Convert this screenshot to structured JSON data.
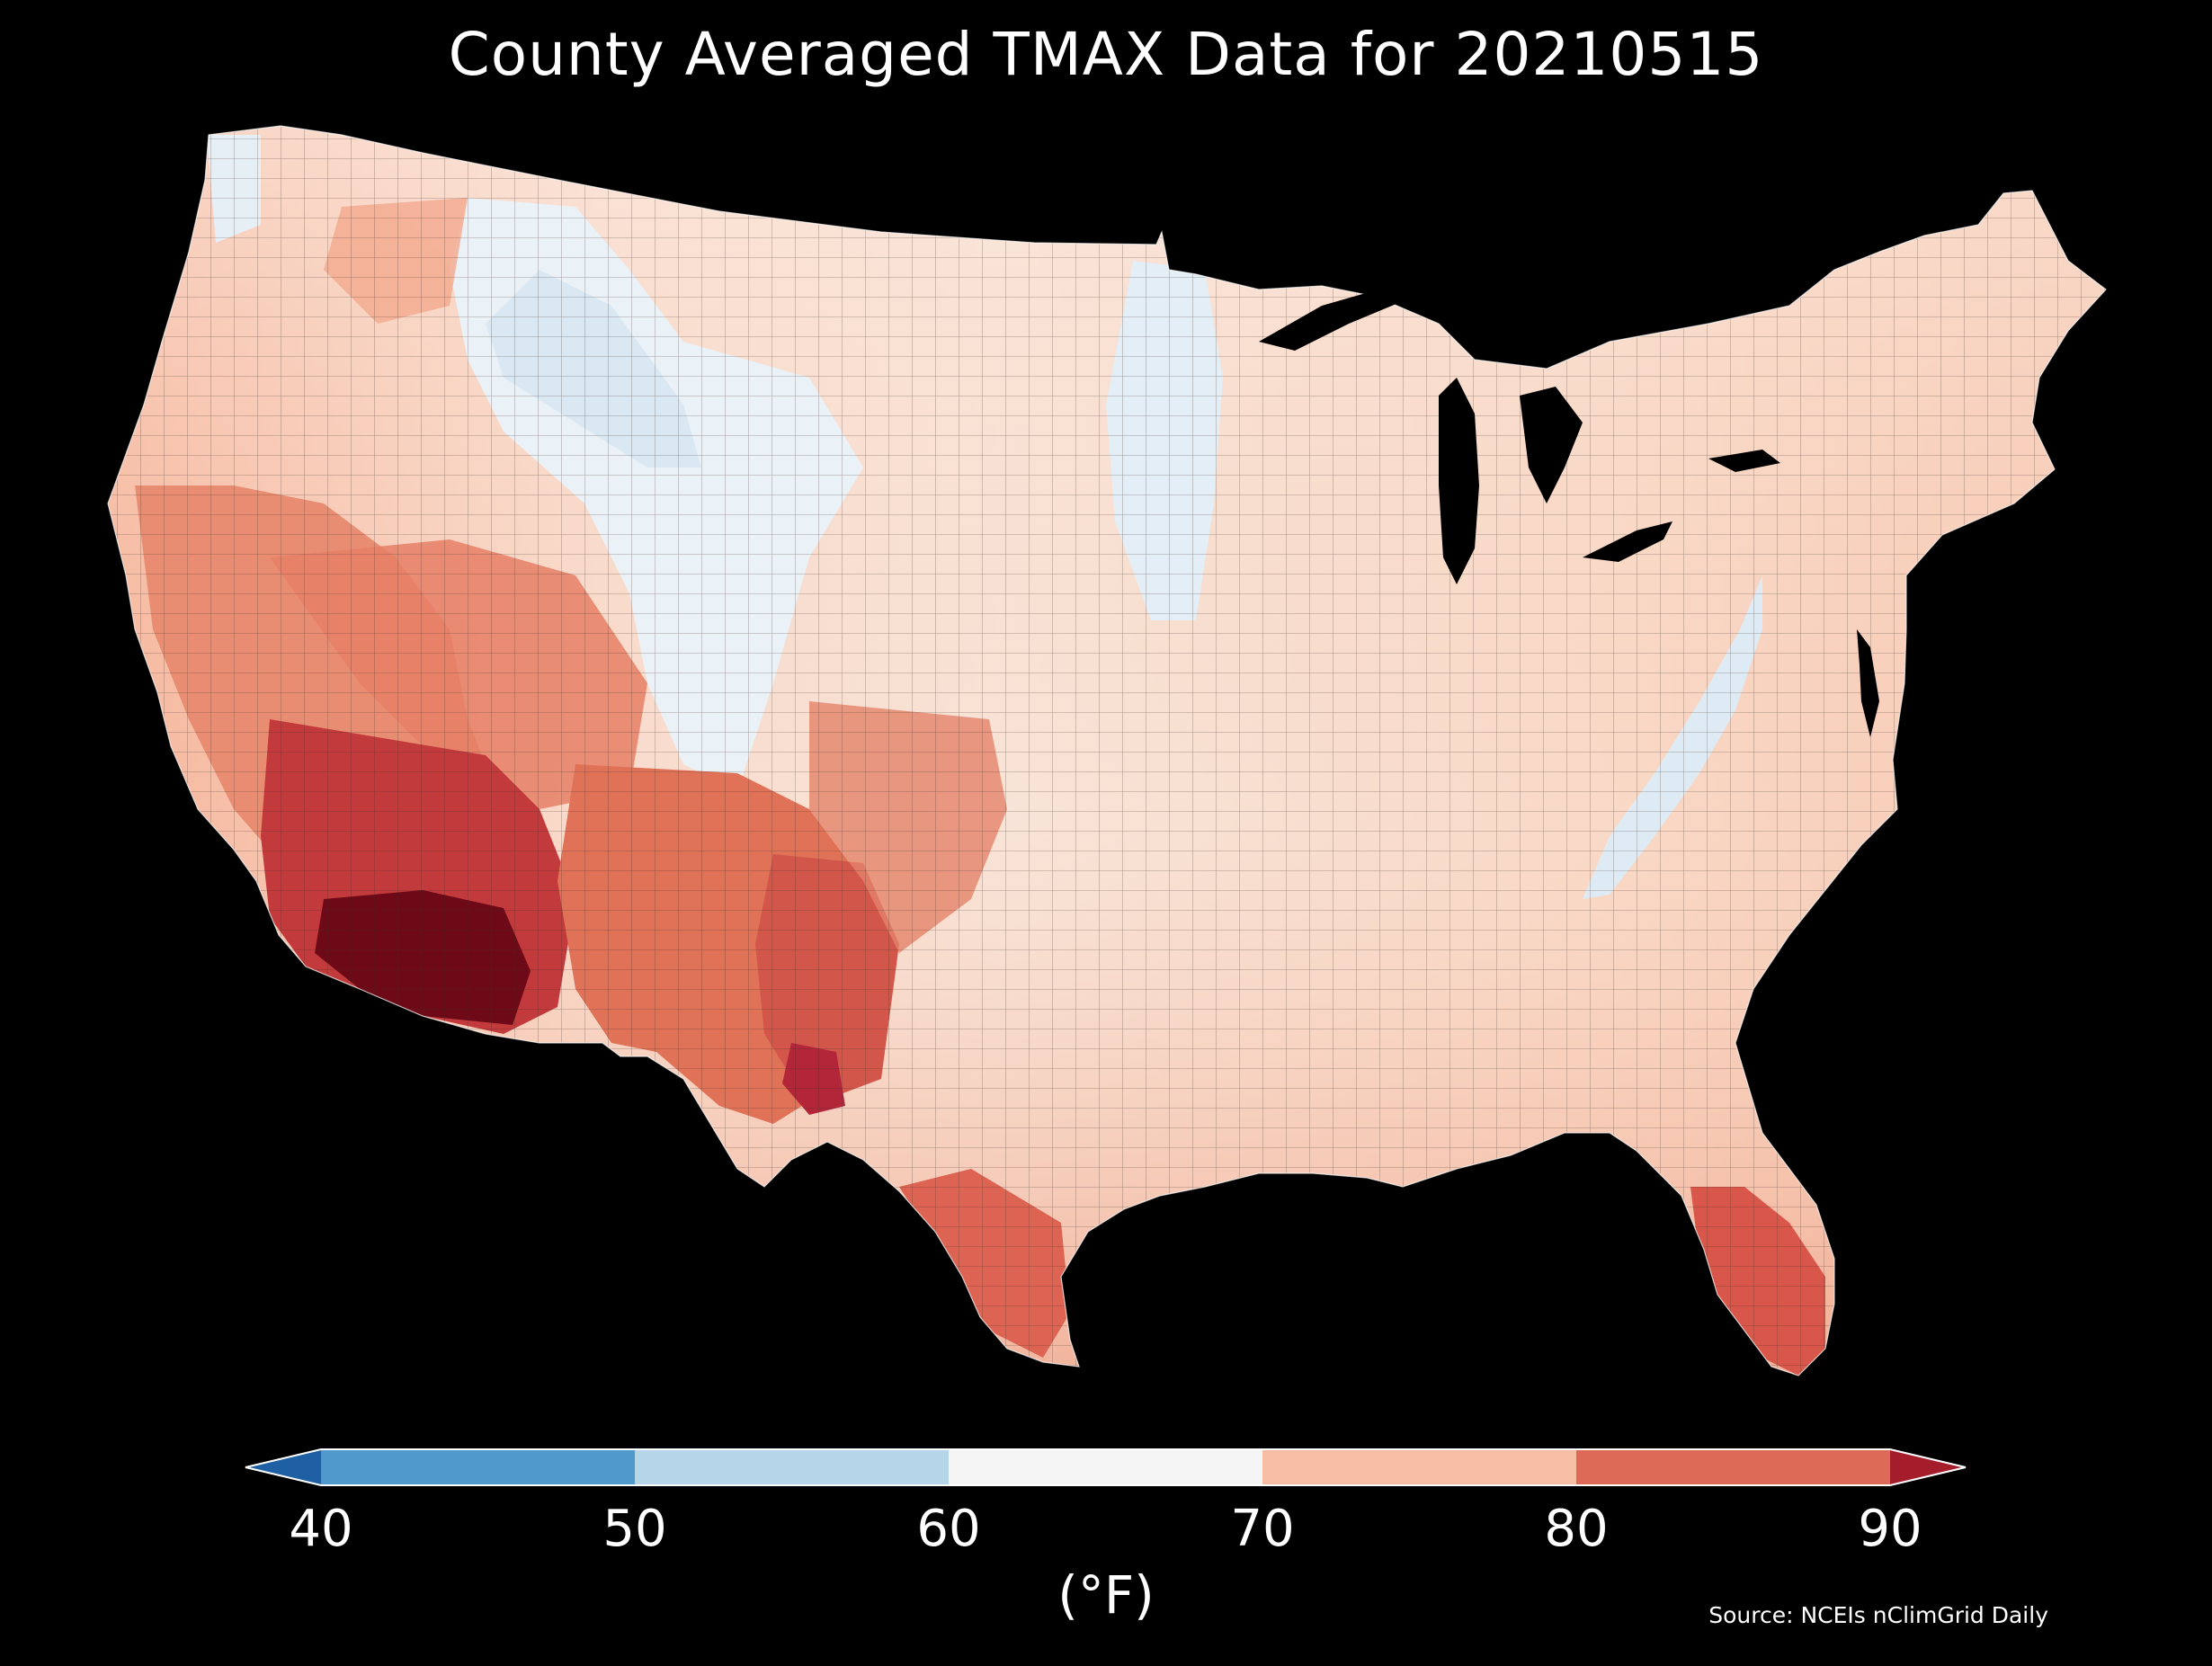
{
  "title": "County Averaged TMAX Data for 20210515",
  "colorbar": {
    "unit_label": "(°F)",
    "ticks": [
      "40",
      "50",
      "60",
      "70",
      "80",
      "90"
    ],
    "bins": [
      {
        "range": [
          null,
          40
        ],
        "color": "#1f5fa3",
        "label": "below 40"
      },
      {
        "range": [
          40,
          50
        ],
        "color": "#4f9aca"
      },
      {
        "range": [
          50,
          60
        ],
        "color": "#b5d6e9"
      },
      {
        "range": [
          60,
          70
        ],
        "color": "#f5f5f5"
      },
      {
        "range": [
          70,
          80
        ],
        "color": "#f7bea4"
      },
      {
        "range": [
          80,
          90
        ],
        "color": "#dd6a56"
      },
      {
        "range": [
          90,
          null
        ],
        "color": "#a51d2a",
        "label": "above 90"
      }
    ]
  },
  "source": "Source: NCEIs nClimGrid Daily",
  "map": {
    "region": "Contiguous United States",
    "variable": "TMAX",
    "date": "20210515",
    "background": "#000000",
    "hot_spot_color": "#67000d",
    "warm_color": "#b2182b"
  }
}
